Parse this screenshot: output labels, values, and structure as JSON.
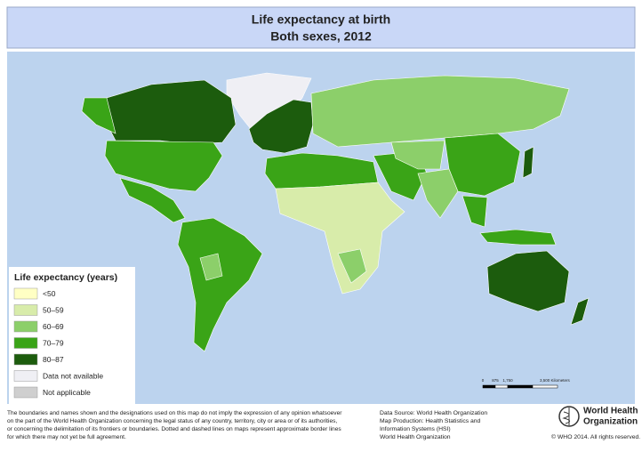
{
  "header": {
    "title": "Life expectancy at birth",
    "subtitle": "Both sexes, 2012"
  },
  "legend": {
    "title": "Life expectancy (years)",
    "items": [
      {
        "label": "<50",
        "color": "#ffffc4"
      },
      {
        "label": "50–59",
        "color": "#d8ecaa"
      },
      {
        "label": "60–69",
        "color": "#8ccf6a"
      },
      {
        "label": "70–79",
        "color": "#3aa417"
      },
      {
        "label": "80–87",
        "color": "#1c5c0d"
      },
      {
        "label": "Data not available",
        "color": "#efeff4"
      },
      {
        "label": "Not applicable",
        "color": "#cfcfcf"
      }
    ]
  },
  "scale_bar": {
    "labels": [
      "0",
      "875",
      "1,750",
      "3,500 Kilometers"
    ]
  },
  "disclaimer": [
    "The boundaries and names shown and the designations used on this map do not imply the expression of any opinion whatsoever",
    "on the part of the World Health Organization concerning the legal status of any country, territory, city or area or of its authorities,",
    "or concerning the delimitation of its frontiers or boundaries. Dotted and dashed lines on maps represent approximate border lines",
    "for which there may not yet be full agreement."
  ],
  "credits": [
    "Data Source: World Health Organization",
    "Map Production: Health Statistics and",
    "Information Systems (HSI)",
    "World Health Organization"
  ],
  "logo": {
    "lines": [
      "World Health",
      "Organization"
    ]
  },
  "copyright": "© WHO 2014. All rights reserved."
}
